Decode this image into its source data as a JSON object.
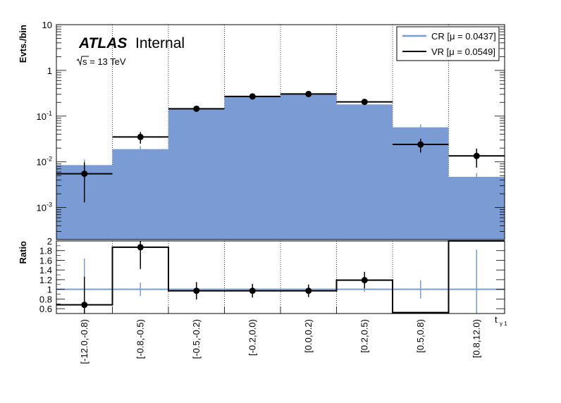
{
  "chart_data": [
    {
      "type": "bar",
      "panel": "main",
      "ylabel": "Evts./bin",
      "yscale": "log",
      "ylim": [
        0.0002,
        10
      ],
      "yticks": [
        "10",
        "1",
        "10^-1",
        "10^-2",
        "10^-3"
      ],
      "categories": [
        "[-12.0,-0.8)",
        "[-0.8,-0.5)",
        "[-0.5,-0.2)",
        "[-0.2,0.0)",
        "[0.0,0.2)",
        "[0.2,0.5)",
        "[0.5,0.8)",
        "[0.8,12.0)"
      ],
      "series": [
        {
          "name": "CR [μ = 0.0437]",
          "style": "filled-histogram",
          "color": "#7a9bd3",
          "values": [
            0.0085,
            0.019,
            0.145,
            0.27,
            0.3,
            0.18,
            0.057,
            0.0047
          ],
          "errors": [
            0.0028,
            0.003,
            0.008,
            0.012,
            0.012,
            0.01,
            0.009,
            0.001
          ]
        },
        {
          "name": "VR [μ = 0.0549]",
          "style": "step-with-points",
          "color": "#000000",
          "values": [
            0.0055,
            0.035,
            0.145,
            0.27,
            0.305,
            0.205,
            0.024,
            0.0135
          ],
          "errors": [
            0.0042,
            0.01,
            0.012,
            0.02,
            0.02,
            0.015,
            0.008,
            0.006
          ]
        }
      ],
      "grid": "vertical dotted at bin edges",
      "legend": "top-right",
      "annotations": {
        "experiment": "ATLAS",
        "status": "Internal",
        "energy_sqrt": "s",
        "energy_value": " = 13 TeV"
      }
    },
    {
      "type": "bar",
      "panel": "ratio",
      "ylabel": "Ratio",
      "xlabel": "t",
      "xlabel_sub": "γ 1",
      "ylim": [
        0.5,
        2.0
      ],
      "yticks": [
        0.6,
        0.8,
        1,
        1.2,
        1.4,
        1.6,
        1.8,
        2
      ],
      "reference_line": 1.0,
      "categories": [
        "[-12.0,-0.8)",
        "[-0.8,-0.5)",
        "[-0.5,-0.2)",
        "[-0.2,0.0)",
        "[0.0,0.2)",
        "[0.2,0.5)",
        "[0.5,0.8)",
        "[0.8,12.0)"
      ],
      "series": [
        {
          "name": "CR [μ = 0.0437]",
          "color": "#7a9bd3",
          "values": [
            1,
            1,
            1,
            1,
            1,
            1,
            1,
            1
          ],
          "errors": [
            0.64,
            0.14,
            0.05,
            0.04,
            0.04,
            0.05,
            0.19,
            0.82
          ]
        },
        {
          "name": "VR [μ = 0.0549]",
          "color": "#000000",
          "values": [
            0.68,
            1.87,
            0.97,
            0.97,
            0.97,
            1.19,
            0.52,
            2.05
          ],
          "errors": [
            0.58,
            0.45,
            0.18,
            0.14,
            0.13,
            0.17,
            null,
            null
          ],
          "show_marker": [
            true,
            true,
            true,
            true,
            true,
            true,
            false,
            false
          ]
        }
      ]
    }
  ]
}
